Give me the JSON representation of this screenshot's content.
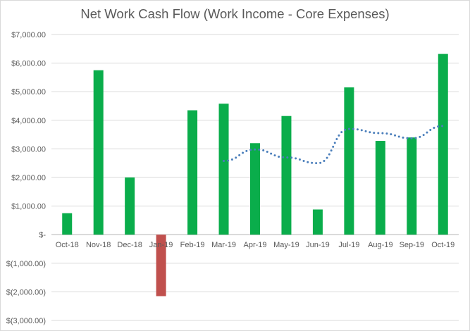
{
  "chart_data": {
    "type": "bar",
    "title": "Net Work Cash Flow (Work Income - Core Expenses)",
    "categories": [
      "Oct-18",
      "Nov-18",
      "Dec-18",
      "Jan-19",
      "Feb-19",
      "Mar-19",
      "Apr-19",
      "May-19",
      "Jun-19",
      "Jul-19",
      "Aug-19",
      "Sep-19",
      "Oct-19"
    ],
    "series": [
      {
        "values": [
          750,
          5750,
          2000,
          -2150,
          4350,
          4580,
          3200,
          4150,
          880,
          5150,
          3280,
          3400,
          6320
        ]
      }
    ],
    "trendline": {
      "type": "moving-average",
      "style": "dotted",
      "values": [
        null,
        null,
        null,
        null,
        null,
        2580,
        2980,
        2700,
        2500,
        3700,
        3550,
        3370,
        3800
      ]
    },
    "y_tick_labels": [
      "$7,000.00",
      "$6,000.00",
      "$5,000.00",
      "$4,000.00",
      "$3,000.00",
      "$2,000.00",
      "$1,000.00",
      "$-",
      "$(1,000.00)",
      "$(2,000.00)",
      "$(3,000.00)"
    ],
    "ylim": [
      -3000,
      7000
    ],
    "grid": true,
    "colors": {
      "positive": "#0aad4b",
      "negative": "#c0504d",
      "trendline": "#4a7ebb",
      "grid": "#d9d9d9",
      "text": "#595959"
    }
  }
}
